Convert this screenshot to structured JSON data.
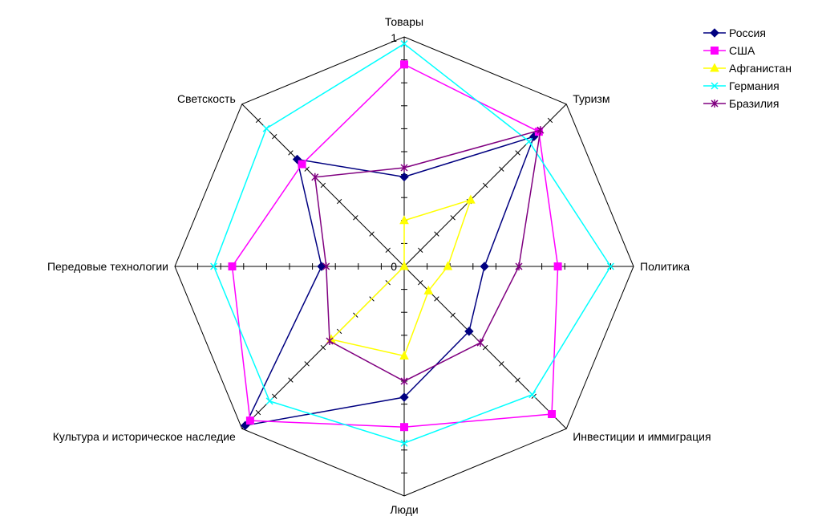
{
  "chart_data": {
    "type": "radar",
    "title": "",
    "axes": [
      "Товары",
      "Туризм",
      "Политика",
      "Инвестиции и иммиграция",
      "Люди",
      "Культура и историческое наследие",
      "Передовые технологии",
      "Светскость"
    ],
    "rlim": [
      0,
      1
    ],
    "tick_labels": {
      "min": "0",
      "max": "1"
    },
    "minor_ticks": 10,
    "legend_position": "top-right",
    "series": [
      {
        "name": "Россия",
        "color": "#000080",
        "marker": "diamond",
        "values": [
          0.39,
          0.8,
          0.35,
          0.4,
          0.57,
          0.98,
          0.36,
          0.66
        ]
      },
      {
        "name": "США",
        "color": "#FF00FF",
        "marker": "square",
        "values": [
          0.88,
          0.83,
          0.67,
          0.91,
          0.7,
          0.95,
          0.75,
          0.63
        ]
      },
      {
        "name": "Афганистан",
        "color": "#FFFF00",
        "marker": "triangle",
        "values": [
          0.2,
          0.41,
          0.19,
          0.15,
          0.39,
          0.45,
          0.0,
          0.0
        ]
      },
      {
        "name": "Германия",
        "color": "#00FFFF",
        "marker": "x",
        "values": [
          0.97,
          0.77,
          0.9,
          0.79,
          0.77,
          0.83,
          0.83,
          0.85
        ]
      },
      {
        "name": "Бразилия",
        "color": "#800080",
        "marker": "star",
        "values": [
          0.43,
          0.84,
          0.5,
          0.47,
          0.5,
          0.46,
          0.34,
          0.55
        ]
      }
    ]
  }
}
